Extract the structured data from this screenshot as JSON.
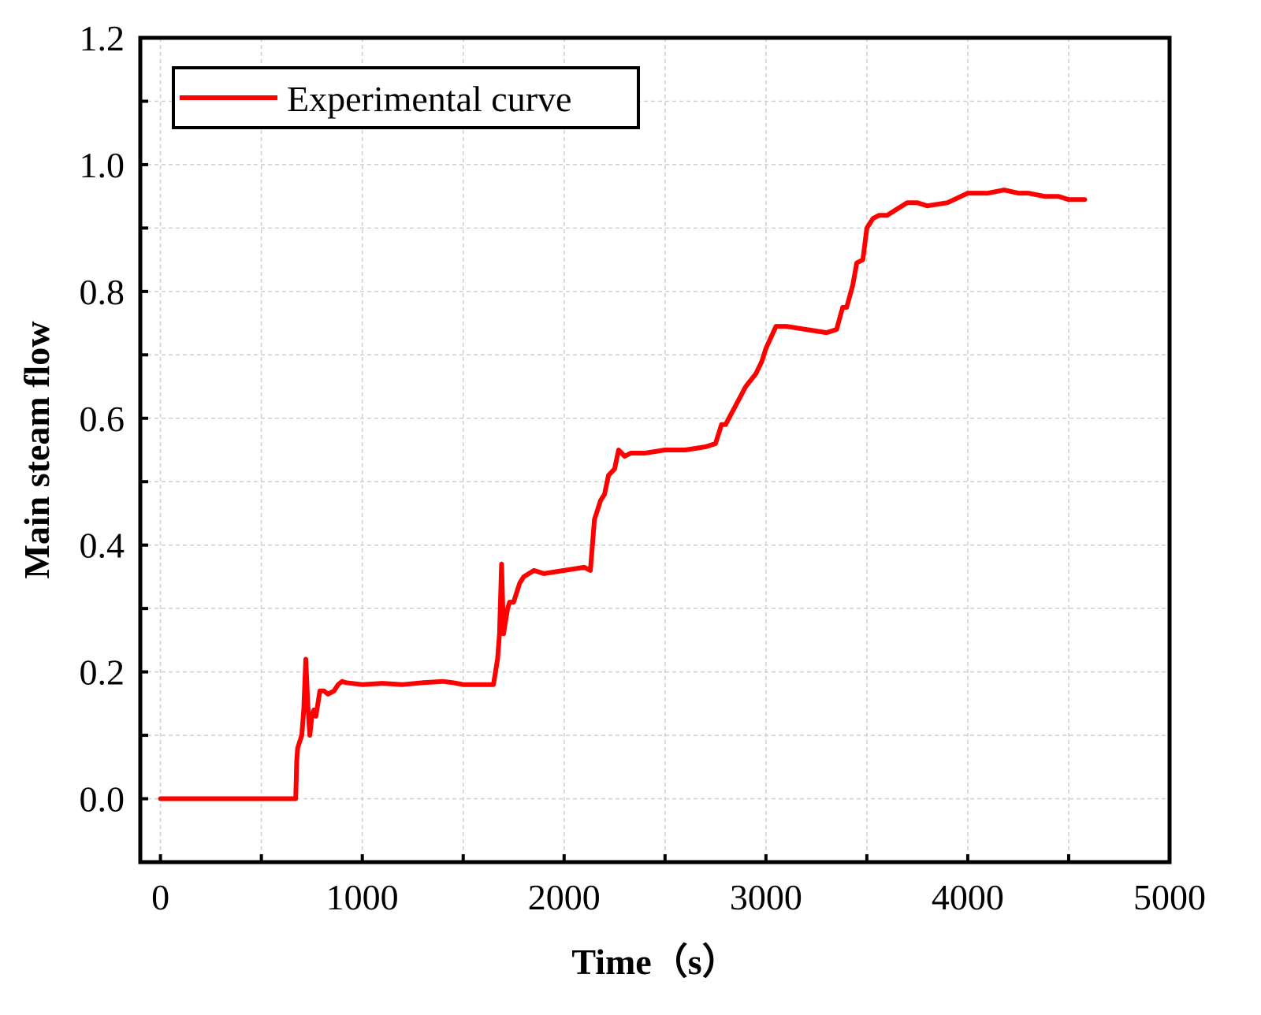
{
  "chart_data": {
    "type": "line",
    "xlabel": "Time（s）",
    "ylabel": "Main steam flow",
    "xlim": [
      -100,
      5000
    ],
    "ylim": [
      -0.1,
      1.2
    ],
    "xticks": [
      0,
      1000,
      2000,
      3000,
      4000,
      5000
    ],
    "xtick_labels": [
      "0",
      "1000",
      "2000",
      "3000",
      "4000",
      "5000"
    ],
    "yticks": [
      0.0,
      0.2,
      0.4,
      0.6,
      0.8,
      1.0,
      1.2
    ],
    "ytick_labels": [
      "0.0",
      "0.2",
      "0.4",
      "0.6",
      "0.8",
      "1.0",
      "1.2"
    ],
    "grid": true,
    "legend_position": "top-left",
    "series": [
      {
        "name": "Experimental curve",
        "color": "#ff0000",
        "x": [
          0,
          650,
          670,
          675,
          680,
          690,
          700,
          710,
          720,
          730,
          740,
          750,
          760,
          770,
          790,
          810,
          830,
          860,
          880,
          900,
          920,
          1000,
          1100,
          1200,
          1300,
          1400,
          1450,
          1500,
          1600,
          1650,
          1670,
          1680,
          1690,
          1700,
          1710,
          1720,
          1730,
          1750,
          1780,
          1800,
          1850,
          1900,
          2000,
          2100,
          2130,
          2150,
          2180,
          2200,
          2220,
          2250,
          2270,
          2300,
          2330,
          2400,
          2500,
          2600,
          2700,
          2750,
          2780,
          2800,
          2850,
          2900,
          2950,
          2980,
          3000,
          3050,
          3100,
          3200,
          3300,
          3350,
          3380,
          3400,
          3430,
          3450,
          3480,
          3500,
          3530,
          3560,
          3600,
          3650,
          3700,
          3750,
          3800,
          3900,
          4000,
          4100,
          4180,
          4250,
          4300,
          4380,
          4450,
          4500,
          4550,
          4580
        ],
        "y": [
          0.0,
          0.0,
          0.0,
          0.06,
          0.08,
          0.09,
          0.1,
          0.14,
          0.22,
          0.15,
          0.1,
          0.13,
          0.14,
          0.13,
          0.17,
          0.17,
          0.165,
          0.17,
          0.18,
          0.185,
          0.183,
          0.18,
          0.182,
          0.18,
          0.183,
          0.185,
          0.183,
          0.18,
          0.18,
          0.18,
          0.22,
          0.26,
          0.37,
          0.26,
          0.28,
          0.3,
          0.31,
          0.31,
          0.34,
          0.35,
          0.36,
          0.355,
          0.36,
          0.365,
          0.36,
          0.44,
          0.47,
          0.48,
          0.51,
          0.52,
          0.55,
          0.54,
          0.545,
          0.545,
          0.55,
          0.55,
          0.555,
          0.56,
          0.59,
          0.59,
          0.62,
          0.65,
          0.67,
          0.69,
          0.71,
          0.745,
          0.745,
          0.74,
          0.735,
          0.74,
          0.775,
          0.775,
          0.81,
          0.845,
          0.85,
          0.9,
          0.915,
          0.92,
          0.92,
          0.93,
          0.94,
          0.94,
          0.935,
          0.94,
          0.955,
          0.955,
          0.96,
          0.955,
          0.955,
          0.95,
          0.95,
          0.945,
          0.945,
          0.945
        ]
      }
    ]
  }
}
